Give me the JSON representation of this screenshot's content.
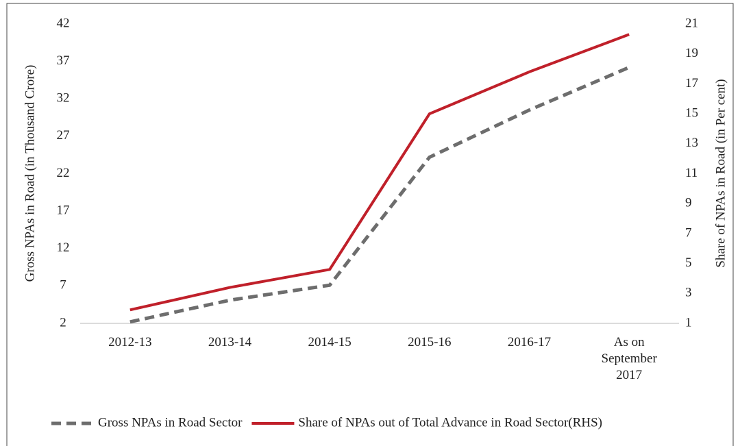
{
  "chart_data": {
    "type": "line",
    "categories": [
      "2012-13",
      "2013-14",
      "2014-15",
      "2015-16",
      "2016-17",
      "As on September 2017"
    ],
    "series": [
      {
        "name": "Gross NPAs in Road Sector",
        "color": "#6d6d6d",
        "dashed": true,
        "values": [
          2.2,
          5.1,
          7.1,
          24.2,
          30.5,
          36.2
        ]
      },
      {
        "name": "Share of NPAs out of Total Advance in Road Sector(RHS)",
        "color": "#c0202a",
        "axis": "y2",
        "values": [
          1.9,
          3.4,
          4.6,
          15.0,
          17.8,
          20.3
        ]
      }
    ],
    "y_label": "Gross NPAs in Road (in Thousand Crore)",
    "y2_label": "Share of NPAs in Road (in Per cent)",
    "ylim": [
      2,
      42
    ],
    "yticks": [
      2,
      7,
      12,
      17,
      22,
      27,
      32,
      37,
      42
    ],
    "y2lim": [
      1,
      21
    ],
    "y2ticks": [
      1,
      3,
      5,
      7,
      9,
      11,
      13,
      15,
      17,
      19,
      21
    ],
    "grid": false,
    "legend": "bottom"
  }
}
